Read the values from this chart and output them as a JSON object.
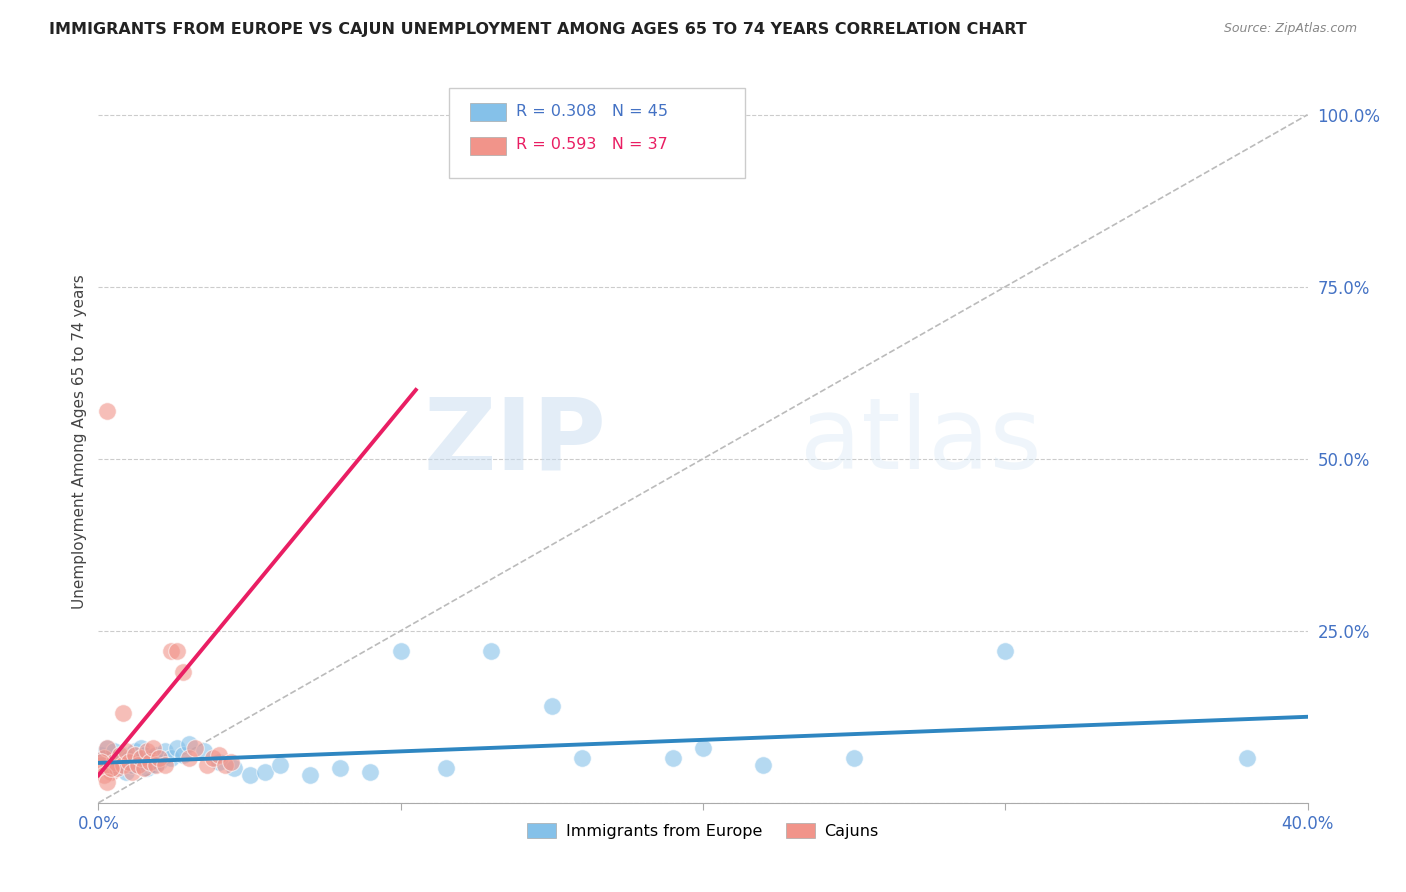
{
  "title": "IMMIGRANTS FROM EUROPE VS CAJUN UNEMPLOYMENT AMONG AGES 65 TO 74 YEARS CORRELATION CHART",
  "source": "Source: ZipAtlas.com",
  "ylabel": "Unemployment Among Ages 65 to 74 years",
  "xlim": [
    0.0,
    0.4
  ],
  "ylim": [
    0.0,
    1.05
  ],
  "ytick_positions": [
    0.0,
    0.25,
    0.5,
    0.75,
    1.0
  ],
  "yticklabels_right": [
    "",
    "25.0%",
    "50.0%",
    "75.0%",
    "100.0%"
  ],
  "legend_label_blue": "Immigrants from Europe",
  "legend_label_pink": "Cajuns",
  "watermark_zip": "ZIP",
  "watermark_atlas": "atlas",
  "blue_color": "#85C1E9",
  "pink_color": "#F1948A",
  "trendline_blue_color": "#2E86C1",
  "trendline_pink_color": "#E91E63",
  "trendline_diag_color": "#BBBBBB",
  "blue_scatter": [
    [
      0.001,
      0.07
    ],
    [
      0.002,
      0.065
    ],
    [
      0.003,
      0.08
    ],
    [
      0.004,
      0.055
    ],
    [
      0.005,
      0.075
    ],
    [
      0.006,
      0.05
    ],
    [
      0.007,
      0.06
    ],
    [
      0.008,
      0.07
    ],
    [
      0.009,
      0.045
    ],
    [
      0.01,
      0.065
    ],
    [
      0.011,
      0.055
    ],
    [
      0.012,
      0.075
    ],
    [
      0.013,
      0.06
    ],
    [
      0.014,
      0.08
    ],
    [
      0.015,
      0.07
    ],
    [
      0.016,
      0.05
    ],
    [
      0.017,
      0.065
    ],
    [
      0.018,
      0.055
    ],
    [
      0.019,
      0.07
    ],
    [
      0.02,
      0.06
    ],
    [
      0.022,
      0.075
    ],
    [
      0.024,
      0.065
    ],
    [
      0.026,
      0.08
    ],
    [
      0.028,
      0.07
    ],
    [
      0.03,
      0.085
    ],
    [
      0.035,
      0.075
    ],
    [
      0.04,
      0.06
    ],
    [
      0.045,
      0.05
    ],
    [
      0.05,
      0.04
    ],
    [
      0.055,
      0.045
    ],
    [
      0.06,
      0.055
    ],
    [
      0.07,
      0.04
    ],
    [
      0.08,
      0.05
    ],
    [
      0.09,
      0.045
    ],
    [
      0.1,
      0.22
    ],
    [
      0.115,
      0.05
    ],
    [
      0.13,
      0.22
    ],
    [
      0.15,
      0.14
    ],
    [
      0.16,
      0.065
    ],
    [
      0.19,
      0.065
    ],
    [
      0.2,
      0.08
    ],
    [
      0.22,
      0.055
    ],
    [
      0.25,
      0.065
    ],
    [
      0.3,
      0.22
    ],
    [
      0.38,
      0.065
    ]
  ],
  "pink_scatter": [
    [
      0.001,
      0.055
    ],
    [
      0.002,
      0.065
    ],
    [
      0.003,
      0.08
    ],
    [
      0.004,
      0.045
    ],
    [
      0.005,
      0.06
    ],
    [
      0.006,
      0.05
    ],
    [
      0.007,
      0.07
    ],
    [
      0.008,
      0.055
    ],
    [
      0.009,
      0.075
    ],
    [
      0.01,
      0.06
    ],
    [
      0.011,
      0.045
    ],
    [
      0.012,
      0.07
    ],
    [
      0.013,
      0.055
    ],
    [
      0.014,
      0.065
    ],
    [
      0.015,
      0.05
    ],
    [
      0.016,
      0.075
    ],
    [
      0.017,
      0.06
    ],
    [
      0.018,
      0.08
    ],
    [
      0.019,
      0.055
    ],
    [
      0.02,
      0.065
    ],
    [
      0.022,
      0.055
    ],
    [
      0.024,
      0.22
    ],
    [
      0.026,
      0.22
    ],
    [
      0.028,
      0.19
    ],
    [
      0.03,
      0.065
    ],
    [
      0.032,
      0.08
    ],
    [
      0.036,
      0.055
    ],
    [
      0.038,
      0.065
    ],
    [
      0.04,
      0.07
    ],
    [
      0.042,
      0.055
    ],
    [
      0.044,
      0.06
    ],
    [
      0.003,
      0.57
    ],
    [
      0.001,
      0.06
    ],
    [
      0.002,
      0.04
    ],
    [
      0.003,
      0.03
    ],
    [
      0.004,
      0.05
    ],
    [
      0.008,
      0.13
    ]
  ],
  "blue_trend_x": [
    0.0,
    0.4
  ],
  "blue_trend_y": [
    0.058,
    0.125
  ],
  "pink_trend_x": [
    0.0,
    0.105
  ],
  "pink_trend_y": [
    0.04,
    0.6
  ],
  "diag_trend_x": [
    0.0,
    0.4
  ],
  "diag_trend_y": [
    0.0,
    1.0
  ]
}
